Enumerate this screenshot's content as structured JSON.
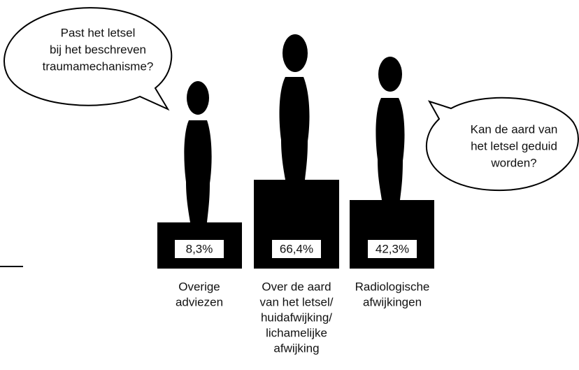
{
  "bubbles": [
    {
      "lines": [
        "Past het letsel",
        "bij het beschreven",
        "traumamechanisme?"
      ]
    },
    {
      "lines": [
        "Kan de aard van",
        "het letsel geduid",
        "worden?"
      ]
    }
  ],
  "podiums": [
    {
      "value": "8,3%",
      "label": [
        "Overige",
        "adviezen"
      ]
    },
    {
      "value": "66,4%",
      "label": [
        "Over de aard",
        "van het letsel/",
        "huidafwijking/",
        "lichamelijke",
        "afwijking"
      ]
    },
    {
      "value": "42,3%",
      "label": [
        "Radiologische",
        "afwijkingen"
      ]
    }
  ]
}
